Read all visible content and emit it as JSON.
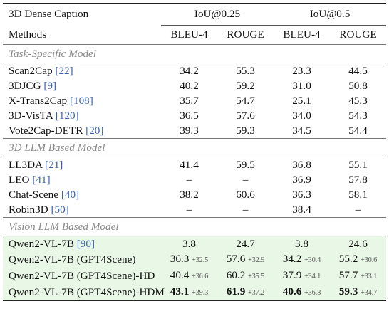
{
  "table": {
    "title": "3D Dense Caption",
    "groups": [
      "IoU@0.25",
      "IoU@0.5"
    ],
    "methods_header": "Methods",
    "metric_headers": [
      "BLEU-4",
      "ROUGE",
      "BLEU-4",
      "ROUGE"
    ],
    "sections": [
      {
        "label": "Task-Specific Model",
        "rows": [
          {
            "name": "Scan2Cap",
            "cite": "[22]",
            "vals": [
              "34.2",
              "55.3",
              "23.3",
              "44.5"
            ]
          },
          {
            "name": "3DJCG",
            "cite": "[9]",
            "vals": [
              "40.2",
              "59.2",
              "31.0",
              "50.8"
            ]
          },
          {
            "name": "X-Trans2Cap",
            "cite": "[108]",
            "vals": [
              "35.7",
              "54.7",
              "25.1",
              "45.3"
            ]
          },
          {
            "name": "3D-VisTA",
            "cite": "[120]",
            "vals": [
              "36.5",
              "57.6",
              "34.0",
              "54.3"
            ]
          },
          {
            "name": "Vote2Cap-DETR",
            "cite": "[20]",
            "vals": [
              "39.3",
              "59.3",
              "34.5",
              "54.4"
            ]
          }
        ]
      },
      {
        "label": "3D LLM Based Model",
        "rows": [
          {
            "name": "LL3DA",
            "cite": "[21]",
            "vals": [
              "41.4",
              "59.5",
              "36.8",
              "55.1"
            ]
          },
          {
            "name": "LEO",
            "cite": "[41]",
            "vals": [
              "–",
              "–",
              "36.9",
              "57.8"
            ]
          },
          {
            "name": "Chat-Scene",
            "cite": "[40]",
            "vals": [
              "38.2",
              "60.6",
              "36.3",
              "58.1"
            ]
          },
          {
            "name": "Robin3D",
            "cite": "[50]",
            "vals": [
              "–",
              "–",
              "38.4",
              "–"
            ]
          }
        ]
      },
      {
        "label": "Vision LLM Based Model",
        "rows": [
          {
            "name": "Qwen2-VL-7B",
            "cite": "[90]",
            "vals": [
              "3.8",
              "24.7",
              "3.8",
              "24.6"
            ],
            "deltas": [
              "",
              "",
              "",
              ""
            ]
          },
          {
            "name": "Qwen2-VL-7B (GPT4Scene)",
            "cite": "",
            "vals": [
              "36.3",
              "57.6",
              "34.2",
              "55.2"
            ],
            "deltas": [
              "+32.5",
              "+32.9",
              "+30.4",
              "+30.6"
            ]
          },
          {
            "name": "Qwen2-VL-7B (GPT4Scene)-HD",
            "cite": "",
            "vals": [
              "40.4",
              "60.2",
              "37.9",
              "57.7"
            ],
            "deltas": [
              "+36.6",
              "+35.5",
              "+34.1",
              "+33.1"
            ]
          },
          {
            "name": "Qwen2-VL-7B (GPT4Scene)-HDM",
            "cite": "",
            "vals": [
              "43.1",
              "61.9",
              "40.6",
              "59.3"
            ],
            "deltas": [
              "+39.3",
              "+37.2",
              "+36.8",
              "+34.7"
            ],
            "bold": true
          }
        ]
      }
    ]
  }
}
